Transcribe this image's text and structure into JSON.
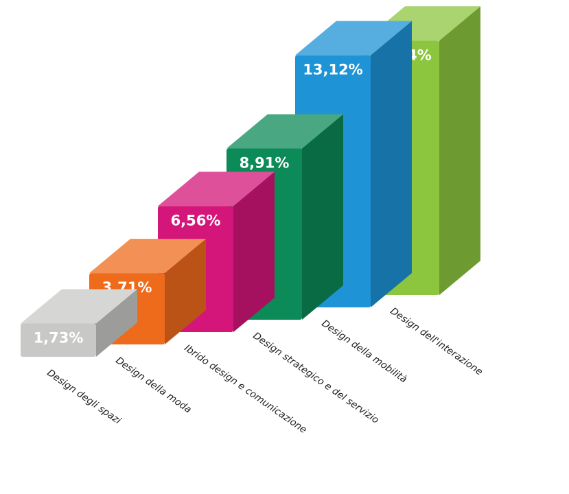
{
  "chart_data": {
    "type": "bar",
    "categories": [
      "Design degli spazi",
      "Design della moda",
      "Ibrido design e comunicazione",
      "Design strategico e del servizio",
      "Design della mobilità",
      "Design dell'interazione"
    ],
    "values": [
      1.73,
      3.71,
      6.56,
      8.91,
      13.12,
      13.24
    ],
    "value_labels": [
      "1,73%",
      "3,71%",
      "6,56%",
      "8,91%",
      "13,12%",
      "13,24%"
    ],
    "colors": [
      "#c8c8c6",
      "#ef6b1c",
      "#d4167a",
      "#0c8a57",
      "#1e93d6",
      "#8cc63f"
    ]
  }
}
